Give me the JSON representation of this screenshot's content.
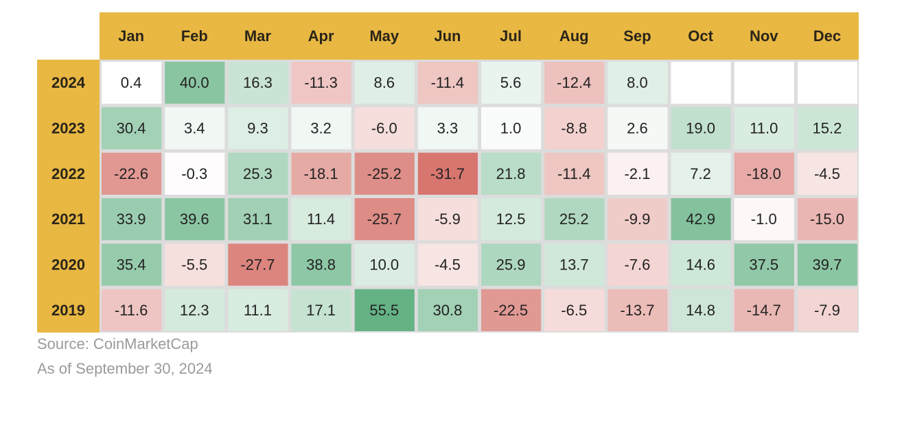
{
  "chart_data": {
    "type": "heatmap",
    "title": "",
    "x_categories": [
      "Jan",
      "Feb",
      "Mar",
      "Apr",
      "May",
      "Jun",
      "Jul",
      "Aug",
      "Sep",
      "Oct",
      "Nov",
      "Dec"
    ],
    "y_categories": [
      "2024",
      "2023",
      "2022",
      "2021",
      "2020",
      "2019"
    ],
    "values": [
      [
        0.4,
        40.0,
        16.3,
        -11.3,
        8.6,
        -11.4,
        5.6,
        -12.4,
        8.0,
        null,
        null,
        null
      ],
      [
        30.4,
        3.4,
        9.3,
        3.2,
        -6.0,
        3.3,
        1.0,
        -8.8,
        2.6,
        19.0,
        11.0,
        15.2
      ],
      [
        -22.6,
        -0.3,
        25.3,
        -18.1,
        -25.2,
        -31.7,
        21.8,
        -11.4,
        -2.1,
        7.2,
        -18.0,
        -4.5
      ],
      [
        33.9,
        39.6,
        31.1,
        11.4,
        -25.7,
        -5.9,
        12.5,
        25.2,
        -9.9,
        42.9,
        -1.0,
        -15.0
      ],
      [
        35.4,
        -5.5,
        -27.7,
        38.8,
        10.0,
        -4.5,
        25.9,
        13.7,
        -7.6,
        14.6,
        37.5,
        39.7
      ],
      [
        -11.6,
        12.3,
        11.1,
        17.1,
        55.5,
        30.8,
        -22.5,
        -6.5,
        -13.7,
        14.8,
        -14.7,
        -7.9
      ]
    ],
    "value_format_decimals": 1,
    "color_scale": {
      "negative": "#d46a62",
      "neutral": "#ffffff",
      "positive": "#5fb080",
      "negative_extreme": -35,
      "positive_extreme": 58
    },
    "header_color": "#e8b843",
    "grid_line_color": "#dcdcdc",
    "legend": "none"
  },
  "footnotes": {
    "source": "Source: CoinMarketCap",
    "as_of": "As of September 30, 2024"
  }
}
